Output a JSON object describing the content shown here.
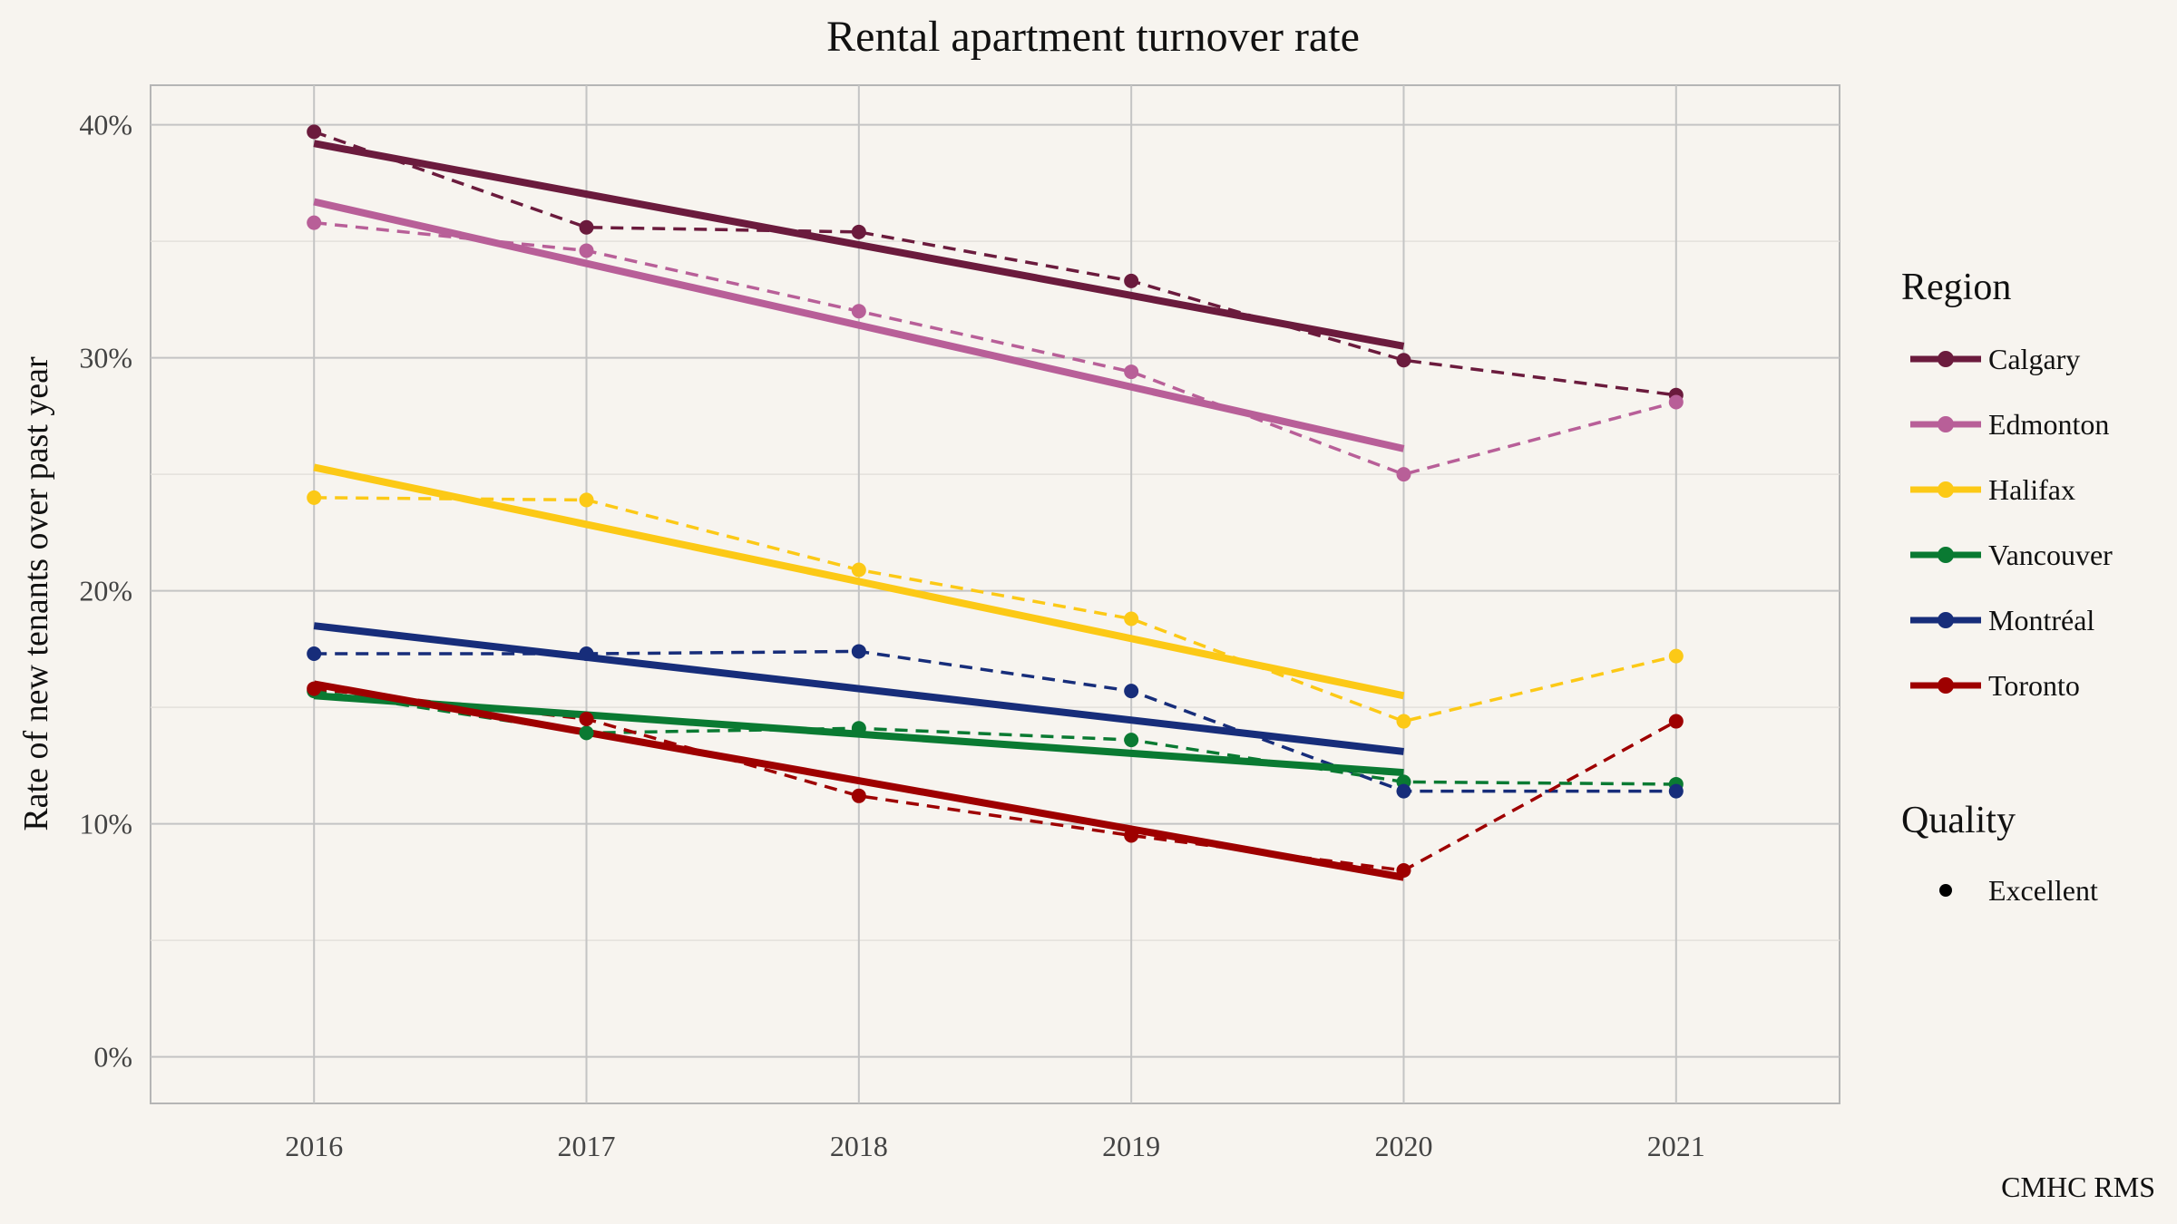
{
  "chart_data": {
    "type": "line",
    "title": "Rental apartment turnover rate",
    "xlabel": "",
    "ylabel": "Rate of new tenants over past year",
    "caption": "CMHC RMS",
    "x": [
      2016,
      2017,
      2018,
      2019,
      2020,
      2021
    ],
    "x_tick_labels": [
      "2016",
      "2017",
      "2018",
      "2019",
      "2020",
      "2021"
    ],
    "xlim": [
      2015.4,
      2021.6
    ],
    "y_ticks": [
      0,
      0.1,
      0.2,
      0.3,
      0.4
    ],
    "y_tick_labels": [
      "0%",
      "10%",
      "20%",
      "30%",
      "40%"
    ],
    "ylim": [
      -0.02,
      0.417
    ],
    "grid": true,
    "legend_position": "right",
    "legend": {
      "region_title": "Region",
      "quality_title": "Quality",
      "quality_items": [
        "Excellent"
      ]
    },
    "series": [
      {
        "name": "Calgary",
        "color": "#6b1b3d",
        "values": [
          0.397,
          0.356,
          0.354,
          0.333,
          0.299,
          0.284
        ],
        "trend": [
          0.392,
          0.305
        ]
      },
      {
        "name": "Edmonton",
        "color": "#b85f98",
        "values": [
          0.358,
          0.346,
          0.32,
          0.294,
          0.25,
          0.281
        ],
        "trend": [
          0.367,
          0.261
        ]
      },
      {
        "name": "Halifax",
        "color": "#fcc916",
        "values": [
          0.24,
          0.239,
          0.209,
          0.188,
          0.144,
          0.172
        ],
        "trend": [
          0.253,
          0.155
        ]
      },
      {
        "name": "Vancouver",
        "color": "#0a7a32",
        "values": [
          0.157,
          0.139,
          0.141,
          0.136,
          0.118,
          0.117
        ],
        "trend": [
          0.155,
          0.122
        ]
      },
      {
        "name": "Montréal",
        "color": "#172d7a",
        "values": [
          0.173,
          0.173,
          0.174,
          0.157,
          0.114,
          0.114
        ],
        "trend": [
          0.185,
          0.131
        ]
      },
      {
        "name": "Toronto",
        "color": "#9e0000",
        "values": [
          0.158,
          0.145,
          0.112,
          0.095,
          0.08,
          0.144
        ],
        "trend": [
          0.16,
          0.077
        ]
      }
    ]
  }
}
